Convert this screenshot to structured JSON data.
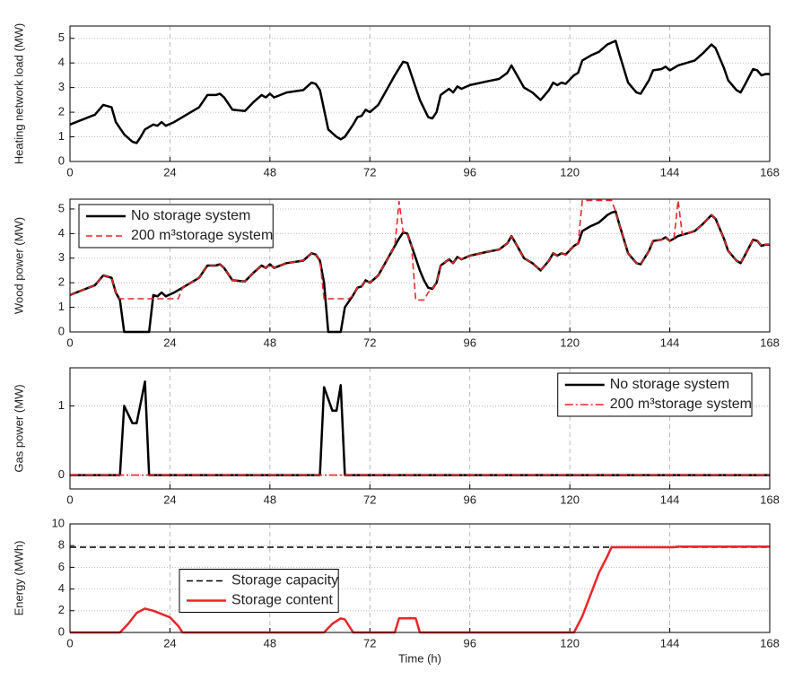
{
  "chart_data": [
    {
      "type": "line",
      "ylabel": "Heating network load (MW)",
      "x": [
        0,
        3,
        6,
        8,
        10,
        11,
        13,
        15,
        16,
        17,
        18,
        20,
        21,
        22,
        23,
        25,
        28,
        31,
        33,
        35,
        36,
        37,
        39,
        42,
        44,
        46,
        47,
        48,
        49,
        52,
        56,
        58,
        59,
        60,
        62,
        64,
        65,
        66,
        68,
        69,
        70,
        71,
        72,
        74,
        76,
        78,
        80,
        81,
        82,
        84,
        86,
        87,
        88,
        89,
        91,
        92,
        93,
        94,
        96,
        100,
        103,
        105,
        106,
        107,
        109,
        111,
        113,
        115,
        116,
        117,
        118,
        119,
        121,
        122,
        123,
        125,
        127,
        129,
        131,
        132,
        134,
        136,
        137,
        139,
        140,
        142,
        143,
        144,
        146,
        148,
        150,
        152,
        154,
        155,
        157,
        158,
        160,
        161,
        162,
        164,
        165,
        166,
        167,
        168
      ],
      "series": [
        {
          "color": "#000000",
          "dash": "solid",
          "values": [
            1.5,
            1.7,
            1.9,
            2.3,
            2.2,
            1.6,
            1.1,
            0.8,
            0.75,
            1.0,
            1.3,
            1.5,
            1.45,
            1.6,
            1.45,
            1.6,
            1.9,
            2.2,
            2.7,
            2.7,
            2.75,
            2.6,
            2.1,
            2.05,
            2.4,
            2.7,
            2.6,
            2.75,
            2.6,
            2.8,
            2.9,
            3.2,
            3.15,
            2.9,
            1.3,
            1.0,
            0.9,
            1.0,
            1.5,
            1.8,
            1.85,
            2.1,
            2.0,
            2.3,
            2.9,
            3.5,
            4.05,
            4.0,
            3.5,
            2.5,
            1.8,
            1.75,
            2.0,
            2.7,
            2.95,
            2.8,
            3.05,
            2.95,
            3.1,
            3.25,
            3.35,
            3.6,
            3.9,
            3.6,
            3.0,
            2.8,
            2.5,
            2.9,
            3.2,
            3.1,
            3.2,
            3.15,
            3.5,
            3.6,
            4.1,
            4.3,
            4.45,
            4.75,
            4.9,
            4.3,
            3.2,
            2.8,
            2.75,
            3.3,
            3.7,
            3.75,
            3.85,
            3.7,
            3.9,
            4.0,
            4.1,
            4.4,
            4.75,
            4.6,
            3.8,
            3.3,
            2.9,
            2.8,
            3.1,
            3.75,
            3.7,
            3.5,
            3.55,
            3.55
          ]
        }
      ],
      "xlim": [
        0,
        168
      ],
      "xticks": [
        0,
        24,
        48,
        72,
        96,
        120,
        144,
        168
      ],
      "ylim": [
        0,
        5.5
      ],
      "yticks": [
        0,
        1,
        2,
        3,
        4,
        5
      ],
      "grid": true
    },
    {
      "type": "line",
      "ylabel": "Wood power (MW)",
      "legend": "upper left",
      "x": [
        0,
        3,
        6,
        8,
        10,
        11,
        12,
        13,
        15,
        16,
        17,
        18,
        19,
        20,
        21,
        22,
        23,
        25,
        26,
        27,
        28,
        31,
        33,
        35,
        36,
        37,
        39,
        42,
        44,
        46,
        47,
        48,
        49,
        52,
        56,
        58,
        59,
        60,
        61,
        62,
        64,
        65,
        66,
        67,
        68,
        69,
        70,
        71,
        72,
        74,
        76,
        78,
        79,
        80,
        81,
        82,
        83,
        84,
        85,
        86,
        87,
        88,
        89,
        91,
        92,
        93,
        94,
        96,
        100,
        103,
        105,
        106,
        107,
        109,
        111,
        113,
        115,
        116,
        117,
        118,
        119,
        121,
        122,
        123,
        125,
        127,
        129,
        130,
        131,
        132,
        134,
        136,
        137,
        139,
        140,
        142,
        143,
        144,
        145,
        146,
        147,
        148,
        150,
        152,
        154,
        155,
        157,
        158,
        160,
        161,
        162,
        164,
        165,
        166,
        167,
        168
      ],
      "series": [
        {
          "name": "No storage system",
          "color": "#000000",
          "dash": "solid",
          "values": [
            1.5,
            1.7,
            1.9,
            2.3,
            2.2,
            1.6,
            1.3,
            0,
            0,
            0,
            0,
            0,
            0,
            1.5,
            1.45,
            1.6,
            1.45,
            1.6,
            1.7,
            1.8,
            1.9,
            2.2,
            2.7,
            2.7,
            2.75,
            2.6,
            2.1,
            2.05,
            2.4,
            2.7,
            2.6,
            2.75,
            2.6,
            2.8,
            2.9,
            3.2,
            3.15,
            2.9,
            2.0,
            0,
            0,
            0,
            1.0,
            1.25,
            1.5,
            1.8,
            1.85,
            2.1,
            2.0,
            2.3,
            2.9,
            3.5,
            3.8,
            4.05,
            4.0,
            3.5,
            3.0,
            2.5,
            2.1,
            1.8,
            1.75,
            2.0,
            2.7,
            2.95,
            2.8,
            3.05,
            2.95,
            3.1,
            3.25,
            3.35,
            3.6,
            3.9,
            3.6,
            3.0,
            2.8,
            2.5,
            2.9,
            3.2,
            3.1,
            3.2,
            3.15,
            3.5,
            3.6,
            4.1,
            4.3,
            4.45,
            4.75,
            4.85,
            4.9,
            4.3,
            3.2,
            2.8,
            2.75,
            3.3,
            3.7,
            3.75,
            3.85,
            3.7,
            3.8,
            3.9,
            3.95,
            4.0,
            4.1,
            4.4,
            4.75,
            4.6,
            3.8,
            3.3,
            2.9,
            2.8,
            3.1,
            3.75,
            3.7,
            3.5,
            3.55,
            3.55
          ]
        },
        {
          "name": "200 m³storage system",
          "color": "#e8262a",
          "dash": "dashed",
          "values": [
            1.5,
            1.7,
            1.9,
            2.3,
            2.2,
            1.6,
            1.35,
            1.35,
            1.35,
            1.35,
            1.35,
            1.35,
            1.35,
            1.35,
            1.35,
            1.35,
            1.35,
            1.35,
            1.35,
            1.8,
            1.9,
            2.2,
            2.7,
            2.7,
            2.75,
            2.6,
            2.1,
            2.05,
            2.4,
            2.7,
            2.6,
            2.75,
            2.6,
            2.8,
            2.9,
            3.2,
            3.15,
            2.9,
            1.35,
            1.35,
            1.35,
            1.35,
            1.35,
            1.35,
            1.5,
            1.8,
            1.85,
            2.1,
            2.0,
            2.3,
            2.9,
            3.5,
            5.3,
            4.05,
            4.0,
            3.5,
            1.3,
            1.3,
            1.3,
            1.6,
            1.75,
            2.0,
            2.7,
            2.95,
            2.8,
            3.05,
            2.95,
            3.1,
            3.25,
            3.35,
            3.6,
            3.9,
            3.6,
            3.0,
            2.8,
            2.5,
            2.9,
            3.2,
            3.1,
            3.2,
            3.15,
            3.5,
            3.6,
            5.35,
            5.35,
            5.35,
            5.35,
            5.35,
            4.9,
            4.3,
            3.2,
            2.8,
            2.75,
            3.3,
            3.7,
            3.75,
            3.85,
            3.7,
            3.8,
            5.35,
            3.95,
            4.0,
            4.1,
            4.4,
            4.75,
            4.6,
            3.8,
            3.3,
            2.9,
            2.8,
            3.1,
            3.75,
            3.7,
            3.5,
            3.55,
            3.55
          ]
        }
      ],
      "xlim": [
        0,
        168
      ],
      "xticks": [
        0,
        24,
        48,
        72,
        96,
        120,
        144,
        168
      ],
      "ylim": [
        0,
        5.4
      ],
      "yticks": [
        0,
        1,
        2,
        3,
        4,
        5
      ],
      "grid": true
    },
    {
      "type": "line",
      "ylabel": "Gas power (MW)",
      "legend": "upper right",
      "x": [
        0,
        12,
        13,
        15,
        16,
        18,
        19,
        60,
        61,
        63,
        64,
        65,
        66,
        168
      ],
      "series": [
        {
          "name": "No storage system",
          "color": "#000000",
          "dash": "solid",
          "values": [
            0,
            0,
            1.0,
            0.75,
            0.75,
            1.35,
            0,
            0,
            1.27,
            0.93,
            0.93,
            1.3,
            0,
            0
          ]
        },
        {
          "name": "200 m³storage system",
          "color": "#e8262a",
          "dash": "dashdot",
          "values": [
            0,
            0,
            0,
            0,
            0,
            0,
            0,
            0,
            0,
            0,
            0,
            0,
            0,
            0
          ]
        }
      ],
      "xlim": [
        0,
        168
      ],
      "xticks": [
        0,
        24,
        48,
        72,
        96,
        120,
        144,
        168
      ],
      "ylim": [
        -0.2,
        1.55
      ],
      "yticks": [
        0,
        1
      ],
      "grid": true
    },
    {
      "type": "line",
      "ylabel": "Energy (MWh)",
      "xlabel": "Time (h)",
      "legend": "center left",
      "x": [
        0,
        12,
        14,
        16,
        18,
        20,
        22,
        24,
        26,
        27,
        61,
        63,
        65,
        66,
        68,
        78,
        79,
        83,
        84,
        121,
        123,
        125,
        127,
        129,
        130,
        145,
        146,
        168
      ],
      "series": [
        {
          "name": "Storage capacity",
          "color": "#000000",
          "dash": "dashed",
          "values": [
            7.85,
            7.85,
            7.85,
            7.85,
            7.85,
            7.85,
            7.85,
            7.85,
            7.85,
            7.85,
            7.85,
            7.85,
            7.85,
            7.85,
            7.85,
            7.85,
            7.85,
            7.85,
            7.85,
            7.85,
            7.85,
            7.85,
            7.85,
            7.85,
            7.85,
            7.85,
            7.85,
            7.85
          ]
        },
        {
          "name": "Storage content",
          "color": "#e8262a",
          "dash": "solid",
          "values": [
            0,
            0,
            0.8,
            1.8,
            2.2,
            2.0,
            1.7,
            1.4,
            0.6,
            0,
            0,
            0.8,
            1.3,
            1.2,
            0,
            0,
            1.3,
            1.3,
            0,
            0,
            1.5,
            3.5,
            5.5,
            7.0,
            7.85,
            7.85,
            7.9,
            7.9
          ]
        }
      ],
      "xlim": [
        0,
        168
      ],
      "xticks": [
        0,
        24,
        48,
        72,
        96,
        120,
        144,
        168
      ],
      "ylim": [
        0,
        10
      ],
      "yticks": [
        0,
        2,
        4,
        6,
        8,
        10
      ],
      "grid": true
    }
  ]
}
